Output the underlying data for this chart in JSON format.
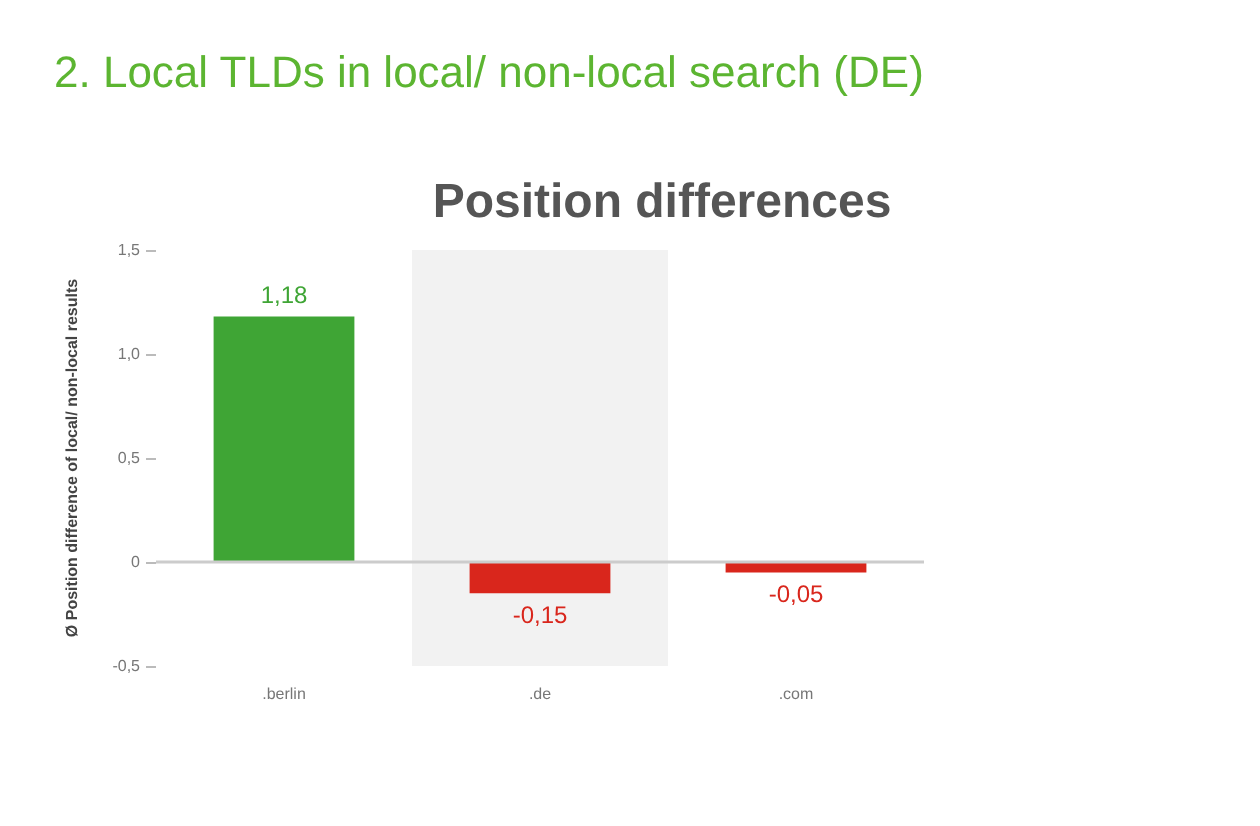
{
  "chart_data": {
    "type": "bar",
    "title": "2. Local TLDs in local/ non-local search (DE)",
    "subtitle": "Position differences",
    "ylabel": "Ø Position difference of local/ non-local results",
    "categories": [
      ".berlin",
      ".de",
      ".com"
    ],
    "values": [
      1.18,
      -0.15,
      -0.05
    ],
    "colors": [
      "#3fa535",
      "#d9261c",
      "#d9261c"
    ],
    "value_labels": [
      "1,18",
      "-0,15",
      "-0,05"
    ],
    "ylim": [
      -0.5,
      1.5
    ],
    "yticks": [
      {
        "value": -0.5,
        "label": "-0,5"
      },
      0,
      {
        "value": 0.5,
        "label": "0,5"
      },
      {
        "value": 1.0,
        "label": "1,0"
      },
      {
        "value": 1.5,
        "label": "1,5"
      }
    ],
    "bands": [
      {
        "axis": "x",
        "from": ".de",
        "to": ".de",
        "color": "#f2f2f2"
      }
    ],
    "ref_lines": [
      {
        "axis": "y",
        "value": 0,
        "color": "#cccccc"
      }
    ]
  }
}
